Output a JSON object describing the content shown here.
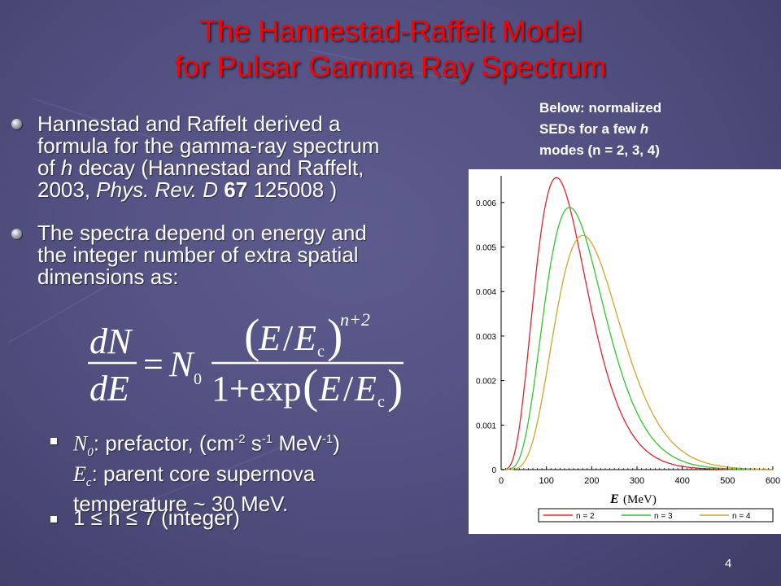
{
  "slide": {
    "title_line1": "The Hannestad-Raffelt Model",
    "title_line2": "for Pulsar Gamma Ray Spectrum",
    "bullet1": {
      "l1": "Hannestad and Raffelt derived a",
      "l2": "formula for the gamma-ray spectrum",
      "l3a": "of ",
      "l3b": "h",
      "l3c": " decay (Hannestad and Raffelt,",
      "l4a": "2003, ",
      "l4b": "Phys. Rev. D",
      "l4c": " 67",
      "l4d": " 125008 )"
    },
    "bullet2": {
      "l1": "The spectra depend on energy and",
      "l2": "the integer number of extra spatial",
      "l3": "dimensions as:"
    },
    "formula": {
      "dN": "dN",
      "dE": "dE",
      "equals": "=",
      "N": "N",
      "N_sub": "0",
      "open": "(",
      "close": ")",
      "E": "E",
      "slash": "/",
      "Ec": "E",
      "c_sub": "c",
      "exponent": "n+2",
      "denom_pre": "1+exp",
      "E2": "E",
      "slash2": "/",
      "Ec2": "E",
      "c_sub2": "c"
    },
    "sub1": {
      "n0_sym": "N",
      "n0_sub": "0",
      "n0_text": ": prefactor, (cm",
      "sup1": "-2",
      "t2": " s",
      "sup2": "-1",
      "t3": " MeV",
      "sup3": "-1",
      "t4": ")",
      "ec_sym": "E",
      "ec_sub": "c",
      "ec_text": ": parent core supernova",
      "l3": "temperature ~ 30 MeV."
    },
    "sub2": "1 ≤ n ≤ 7 (integer)",
    "caption": {
      "l1": "Below: normalized",
      "l2a": "SEDs for a few ",
      "l2b": "h",
      "l3": "modes (n = 2, 3, 4)"
    },
    "page_number": "4"
  },
  "colors": {
    "title": "#ff0000",
    "text": "#ffffff",
    "background": "#525182"
  },
  "chart_data": {
    "type": "line",
    "xlabel_var": "E",
    "xlabel_unit": "(MeV)",
    "x_ticks": [
      "0",
      "100",
      "200",
      "300",
      "400",
      "500",
      "600"
    ],
    "y_ticks": [
      "0",
      "0.001",
      "0.002",
      "0.003",
      "0.004",
      "0.005",
      "0.006"
    ],
    "xlim": [
      0,
      600
    ],
    "ylim": [
      0,
      0.0066
    ],
    "legend_position": "bottom",
    "series": [
      {
        "name": "n = 2",
        "color": "#e8202a",
        "n": 2,
        "peak": 0.00656
      },
      {
        "name": "n = 3",
        "color": "#2ec82e",
        "n": 3,
        "peak": 0.00589
      },
      {
        "name": "n = 4",
        "color": "#d4a32a",
        "n": 4,
        "peak": 0.00526
      }
    ]
  }
}
